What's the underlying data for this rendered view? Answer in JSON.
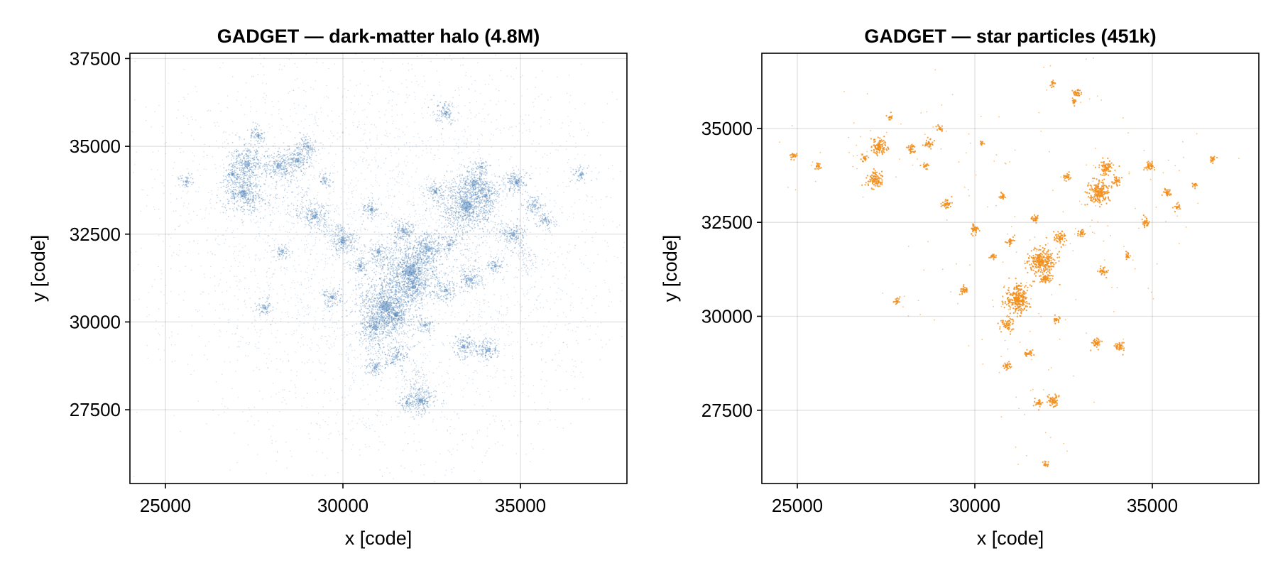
{
  "chart_data": [
    {
      "type": "scatter",
      "title": "GADGET — dark-matter halo (4.8M)",
      "xlabel": "x [code]",
      "ylabel": "y [code]",
      "xlim": [
        24000,
        38000
      ],
      "ylim": [
        25400,
        37650
      ],
      "xticks": [
        25000,
        30000,
        35000
      ],
      "xtick_labels": [
        "25000",
        "30000",
        "35000"
      ],
      "yticks": [
        27500,
        30000,
        32500,
        35000,
        37500
      ],
      "ytick_labels": [
        "27500",
        "30000",
        "32500",
        "35000",
        "37500"
      ],
      "grid": true,
      "color": "#4a7fb5",
      "series": [
        {
          "kind": "diffuse",
          "points": [
            [
              24900,
              34300
            ],
            [
              25800,
              31300
            ],
            [
              26500,
              33500
            ],
            [
              27000,
              35500
            ],
            [
              27600,
              36000
            ],
            [
              28000,
              32000
            ],
            [
              28400,
              30800
            ],
            [
              28800,
              36400
            ],
            [
              29300,
              28500
            ],
            [
              29600,
              35700
            ],
            [
              30000,
              36200
            ],
            [
              30400,
              29000
            ],
            [
              30800,
              35100
            ],
            [
              31200,
              27900
            ],
            [
              31600,
              36300
            ],
            [
              32000,
              34500
            ],
            [
              32400,
              26300
            ],
            [
              32700,
              35700
            ],
            [
              33000,
              36000
            ],
            [
              33400,
              27700
            ],
            [
              33800,
              35300
            ],
            [
              34200,
              29600
            ],
            [
              34600,
              35100
            ],
            [
              35000,
              30700
            ],
            [
              35400,
              34100
            ],
            [
              35800,
              31700
            ],
            [
              36200,
              33100
            ],
            [
              36600,
              32300
            ],
            [
              37000,
              35500
            ],
            [
              36900,
              30900
            ],
            [
              35600,
              29300
            ],
            [
              27200,
              31800
            ],
            [
              26000,
              34000
            ],
            [
              29000,
              31500
            ],
            [
              31500,
              33500
            ],
            [
              33000,
              31000
            ],
            [
              34500,
              32800
            ],
            [
              30500,
              32500
            ],
            [
              28500,
              33500
            ],
            [
              32500,
              28800
            ]
          ]
        },
        {
          "kind": "clumps",
          "points": [
            [
              31200,
              30450,
              3.2
            ],
            [
              31900,
              31450,
              3.4
            ],
            [
              33500,
              33300,
              3.0
            ],
            [
              27200,
              33650,
              2.2
            ],
            [
              27300,
              34500,
              2.0
            ],
            [
              28200,
              34450,
              1.6
            ],
            [
              28700,
              34600,
              1.4
            ],
            [
              33700,
              33950,
              1.8
            ],
            [
              34900,
              34000,
              1.4
            ],
            [
              32400,
              32100,
              1.7
            ],
            [
              32200,
              27750,
              1.6
            ],
            [
              30900,
              29850,
              1.6
            ],
            [
              30000,
              32300,
              1.5
            ],
            [
              29200,
              33000,
              1.4
            ],
            [
              32900,
              35950,
              1.2
            ],
            [
              27600,
              35300,
              1.0
            ],
            [
              31500,
              29000,
              1.2
            ],
            [
              31700,
              32600,
              1.4
            ],
            [
              32900,
              30900,
              1.2
            ],
            [
              33600,
              31200,
              1.3
            ],
            [
              34100,
              29200,
              1.2
            ],
            [
              33400,
              29300,
              1.2
            ],
            [
              34800,
              32500,
              1.3
            ],
            [
              35400,
              33300,
              1.1
            ],
            [
              35700,
              32900,
              1.0
            ],
            [
              36700,
              34200,
              0.9
            ],
            [
              31000,
              32000,
              1.0
            ],
            [
              29700,
              30700,
              1.1
            ],
            [
              30800,
              33200,
              1.1
            ],
            [
              29000,
              35000,
              1.0
            ],
            [
              26900,
              34200,
              1.0
            ],
            [
              28300,
              32000,
              0.9
            ],
            [
              27800,
              30400,
              1.0
            ],
            [
              30900,
              28700,
              1.0
            ],
            [
              31800,
              27700,
              0.9
            ],
            [
              32600,
              33700,
              1.1
            ],
            [
              34300,
              31600,
              1.0
            ],
            [
              32000,
              31000,
              1.5
            ],
            [
              31500,
              30200,
              1.5
            ],
            [
              34000,
              33600,
              1.2
            ],
            [
              29500,
              34000,
              0.8
            ],
            [
              30500,
              31600,
              1.0
            ],
            [
              33000,
              32200,
              1.0
            ],
            [
              32300,
              29900,
              1.0
            ],
            [
              33900,
              34400,
              0.8
            ],
            [
              25600,
              34000,
              0.8
            ]
          ]
        },
        {
          "kind": "filaments",
          "points": [
            [
              27200,
              33650,
              29400,
              32900
            ],
            [
              29400,
              32900,
              30000,
              32300
            ],
            [
              30000,
              32300,
              31900,
              31450
            ],
            [
              31900,
              31450,
              33500,
              33300
            ],
            [
              33500,
              33300,
              34900,
              34000
            ],
            [
              31900,
              31450,
              31200,
              30450
            ],
            [
              31200,
              30450,
              30900,
              29800
            ],
            [
              31200,
              30450,
              32000,
              28500
            ],
            [
              32000,
              28500,
              32200,
              27750
            ],
            [
              30900,
              29800,
              30900,
              28700
            ],
            [
              28200,
              34450,
              29200,
              33000
            ],
            [
              27300,
              34500,
              27200,
              33650
            ],
            [
              33500,
              33300,
              34800,
              32500
            ],
            [
              34800,
              32500,
              35300,
              31400
            ],
            [
              32400,
              32100,
              31900,
              31450
            ],
            [
              33600,
              31200,
              33500,
              33300
            ],
            [
              33400,
              29300,
              34100,
              29200
            ],
            [
              28700,
              34600,
              29000,
              35000
            ]
          ]
        }
      ]
    },
    {
      "type": "scatter",
      "title": "GADGET — star particles (451k)",
      "xlabel": "x [code]",
      "ylabel": "y [code]",
      "xlim": [
        24000,
        38000
      ],
      "ylim": [
        25550,
        37000
      ],
      "xticks": [
        25000,
        30000,
        35000
      ],
      "xtick_labels": [
        "25000",
        "30000",
        "35000"
      ],
      "yticks": [
        27500,
        30000,
        32500,
        35000
      ],
      "ytick_labels": [
        "27500",
        "30000",
        "32500",
        "35000"
      ],
      "grid": true,
      "color": "#f28e1c",
      "series": [
        {
          "kind": "clumps",
          "points": [
            [
              31200,
              30450,
              2.6
            ],
            [
              31900,
              31450,
              2.6
            ],
            [
              33500,
              33300,
              2.2
            ],
            [
              27300,
              34500,
              1.6
            ],
            [
              27200,
              33650,
              1.6
            ],
            [
              33700,
              33950,
              1.4
            ],
            [
              32200,
              27750,
              1.2
            ],
            [
              32400,
              32100,
              1.2
            ],
            [
              30900,
              29800,
              1.2
            ],
            [
              34100,
              29200,
              1.0
            ],
            [
              33400,
              29300,
              1.0
            ],
            [
              34900,
              34000,
              1.0
            ],
            [
              35400,
              33300,
              0.9
            ],
            [
              29200,
              33000,
              1.0
            ],
            [
              30000,
              32300,
              1.0
            ],
            [
              28200,
              34450,
              0.9
            ],
            [
              28700,
              34600,
              0.9
            ],
            [
              32900,
              35950,
              0.9
            ],
            [
              33600,
              31200,
              0.9
            ],
            [
              29700,
              30700,
              0.9
            ],
            [
              31500,
              29000,
              0.8
            ],
            [
              31800,
              27700,
              0.8
            ],
            [
              30900,
              28700,
              0.8
            ],
            [
              34800,
              32500,
              0.9
            ],
            [
              36700,
              34200,
              0.7
            ],
            [
              25600,
              34000,
              0.7
            ],
            [
              24900,
              34300,
              0.7
            ],
            [
              35700,
              32900,
              0.7
            ],
            [
              36200,
              33500,
              0.6
            ],
            [
              32600,
              33700,
              0.8
            ],
            [
              31700,
              32600,
              0.8
            ],
            [
              30800,
              33200,
              0.7
            ],
            [
              27800,
              30400,
              0.7
            ],
            [
              29000,
              35000,
              0.7
            ],
            [
              31000,
              32000,
              0.8
            ],
            [
              32000,
              31000,
              1.1
            ],
            [
              34300,
              31600,
              0.7
            ],
            [
              33000,
              32200,
              0.8
            ],
            [
              32300,
              29900,
              0.7
            ],
            [
              32200,
              36200,
              0.6
            ],
            [
              32000,
              26050,
              0.6
            ],
            [
              26900,
              34200,
              0.7
            ],
            [
              30500,
              31600,
              0.7
            ],
            [
              34000,
              33600,
              0.9
            ],
            [
              27600,
              35300,
              0.6
            ],
            [
              28600,
              34000,
              0.6
            ],
            [
              32800,
              35700,
              0.6
            ],
            [
              30200,
              34600,
              0.5
            ]
          ]
        }
      ]
    }
  ]
}
